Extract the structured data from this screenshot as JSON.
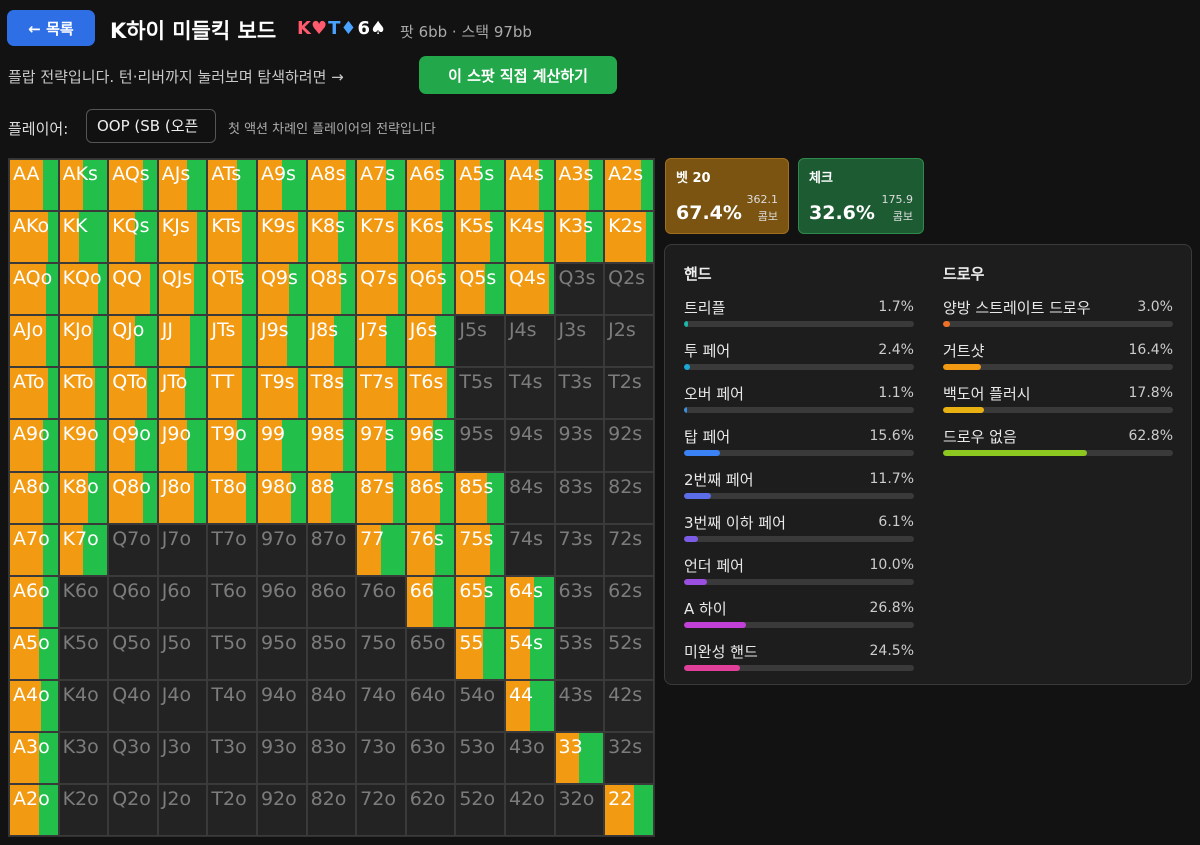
{
  "header": {
    "back_label": "← 목록",
    "title": "K하이 미들킥 보드",
    "board": [
      {
        "rank": "K",
        "suit": "♥",
        "color": "#ff5a6e"
      },
      {
        "rank": "T",
        "suit": "♦",
        "color": "#4aa3ff"
      },
      {
        "rank": "6",
        "suit": "♠",
        "color": "#ffffff"
      }
    ],
    "pot_stack": "팟 6bb · 스택 97bb"
  },
  "description": "플랍 전략입니다. 턴·리버까지 눌러보며 탐색하려면 →",
  "calc_button": "이 스팟 직접 계산하기",
  "player": {
    "label": "플레이어:",
    "selected": "OOP (SB (오픈",
    "note": "첫 액션 차례인 플레이어의 전략입니다"
  },
  "actions": [
    {
      "name": "벳 20",
      "pct": "67.4%",
      "combos": "362.1",
      "combo_label": "콤보"
    },
    {
      "name": "체크",
      "pct": "32.6%",
      "combos": "175.9",
      "combo_label": "콤보"
    }
  ],
  "colors": {
    "bet": "#f29a12",
    "check": "#22c04a",
    "inactive": "#232323"
  },
  "hands": {
    "title": "핸드",
    "items": [
      {
        "name": "트리플",
        "pct": "1.7%",
        "value": 1.7,
        "color": "#1fb5a8"
      },
      {
        "name": "투 페어",
        "pct": "2.4%",
        "value": 2.4,
        "color": "#1aa8d8"
      },
      {
        "name": "오버 페어",
        "pct": "1.1%",
        "value": 1.1,
        "color": "#3a90e0"
      },
      {
        "name": "탑 페어",
        "pct": "15.6%",
        "value": 15.6,
        "color": "#3b82f6"
      },
      {
        "name": "2번째 페어",
        "pct": "11.7%",
        "value": 11.7,
        "color": "#5b6ee8"
      },
      {
        "name": "3번째 이하 페어",
        "pct": "6.1%",
        "value": 6.1,
        "color": "#7c5ce6"
      },
      {
        "name": "언더 페어",
        "pct": "10.0%",
        "value": 10.0,
        "color": "#9b4fe0"
      },
      {
        "name": "A 하이",
        "pct": "26.8%",
        "value": 26.8,
        "color": "#c040d8"
      },
      {
        "name": "미완성 핸드",
        "pct": "24.5%",
        "value": 24.5,
        "color": "#e0409a"
      }
    ]
  },
  "draws": {
    "title": "드로우",
    "items": [
      {
        "name": "양방 스트레이트 드로우",
        "pct": "3.0%",
        "value": 3.0,
        "color": "#f07028"
      },
      {
        "name": "거트샷",
        "pct": "16.4%",
        "value": 16.4,
        "color": "#f29a12"
      },
      {
        "name": "백도어 플러시",
        "pct": "17.8%",
        "value": 17.8,
        "color": "#e8b010"
      },
      {
        "name": "드로우 없음",
        "pct": "62.8%",
        "value": 62.8,
        "color": "#8cc820"
      }
    ]
  },
  "grid": {
    "rows": [
      [
        "AA",
        "AKs",
        "AQs",
        "AJs",
        "ATs",
        "A9s",
        "A8s",
        "A7s",
        "A6s",
        "A5s",
        "A4s",
        "A3s",
        "A2s"
      ],
      [
        "AKo",
        "KK",
        "KQs",
        "KJs",
        "KTs",
        "K9s",
        "K8s",
        "K7s",
        "K6s",
        "K5s",
        "K4s",
        "K3s",
        "K2s"
      ],
      [
        "AQo",
        "KQo",
        "QQ",
        "QJs",
        "QTs",
        "Q9s",
        "Q8s",
        "Q7s",
        "Q6s",
        "Q5s",
        "Q4s",
        "Q3s",
        "Q2s"
      ],
      [
        "AJo",
        "KJo",
        "QJo",
        "JJ",
        "JTs",
        "J9s",
        "J8s",
        "J7s",
        "J6s",
        "J5s",
        "J4s",
        "J3s",
        "J2s"
      ],
      [
        "ATo",
        "KTo",
        "QTo",
        "JTo",
        "TT",
        "T9s",
        "T8s",
        "T7s",
        "T6s",
        "T5s",
        "T4s",
        "T3s",
        "T2s"
      ],
      [
        "A9o",
        "K9o",
        "Q9o",
        "J9o",
        "T9o",
        "99",
        "98s",
        "97s",
        "96s",
        "95s",
        "94s",
        "93s",
        "92s"
      ],
      [
        "A8o",
        "K8o",
        "Q8o",
        "J8o",
        "T8o",
        "98o",
        "88",
        "87s",
        "86s",
        "85s",
        "84s",
        "83s",
        "82s"
      ],
      [
        "A7o",
        "K7o",
        "Q7o",
        "J7o",
        "T7o",
        "97o",
        "87o",
        "77",
        "76s",
        "75s",
        "74s",
        "73s",
        "72s"
      ],
      [
        "A6o",
        "K6o",
        "Q6o",
        "J6o",
        "T6o",
        "96o",
        "86o",
        "76o",
        "66",
        "65s",
        "64s",
        "63s",
        "62s"
      ],
      [
        "A5o",
        "K5o",
        "Q5o",
        "J5o",
        "T5o",
        "95o",
        "85o",
        "75o",
        "65o",
        "55",
        "54s",
        "53s",
        "52s"
      ],
      [
        "A4o",
        "K4o",
        "Q4o",
        "J4o",
        "T4o",
        "94o",
        "84o",
        "74o",
        "64o",
        "54o",
        "44",
        "43s",
        "42s"
      ],
      [
        "A3o",
        "K3o",
        "Q3o",
        "J3o",
        "T3o",
        "93o",
        "83o",
        "73o",
        "63o",
        "53o",
        "43o",
        "33",
        "32s"
      ],
      [
        "A2o",
        "K2o",
        "Q2o",
        "J2o",
        "T2o",
        "92o",
        "82o",
        "72o",
        "62o",
        "52o",
        "42o",
        "32o",
        "22"
      ]
    ],
    "strategy": [
      [
        [
          0.7,
          1
        ],
        [
          0.5,
          1
        ],
        [
          0.7,
          1
        ],
        [
          0.6,
          1
        ],
        [
          0.6,
          1
        ],
        [
          0.5,
          1
        ],
        [
          0.8,
          1
        ],
        [
          0.6,
          1
        ],
        [
          0.7,
          1
        ],
        [
          0.5,
          1
        ],
        [
          0.7,
          1
        ],
        [
          0.7,
          1
        ],
        [
          0.75,
          1
        ]
      ],
      [
        [
          0.8,
          1
        ],
        [
          0.4,
          1
        ],
        [
          0.55,
          1
        ],
        [
          0.8,
          1
        ],
        [
          0.7,
          1
        ],
        [
          0.85,
          1
        ],
        [
          0.65,
          1
        ],
        [
          0.85,
          1
        ],
        [
          0.75,
          1
        ],
        [
          0.7,
          1
        ],
        [
          0.8,
          1
        ],
        [
          0.65,
          1
        ],
        [
          0.85,
          1
        ]
      ],
      [
        [
          0.75,
          1
        ],
        [
          0.8,
          1
        ],
        [
          0.85,
          1
        ],
        [
          0.75,
          1
        ],
        [
          0.7,
          1
        ],
        [
          0.65,
          1
        ],
        [
          0.7,
          1
        ],
        [
          0.85,
          1
        ],
        [
          0.75,
          1
        ],
        [
          0.6,
          1
        ],
        [
          0.9,
          1
        ],
        [
          0,
          0
        ],
        [
          0,
          0
        ]
      ],
      [
        [
          0.75,
          1
        ],
        [
          0.7,
          1
        ],
        [
          0.55,
          1
        ],
        [
          0.65,
          1
        ],
        [
          0.7,
          1
        ],
        [
          0.6,
          1
        ],
        [
          0.55,
          1
        ],
        [
          0.6,
          1
        ],
        [
          0.6,
          1
        ],
        [
          0,
          0
        ],
        [
          0,
          0
        ],
        [
          0,
          0
        ],
        [
          0,
          0
        ]
      ],
      [
        [
          0.8,
          1
        ],
        [
          0.75,
          1
        ],
        [
          0.8,
          1
        ],
        [
          0.55,
          1
        ],
        [
          0.7,
          1
        ],
        [
          0.85,
          1
        ],
        [
          0.75,
          1
        ],
        [
          0.85,
          1
        ],
        [
          0.85,
          1
        ],
        [
          0,
          0
        ],
        [
          0,
          0
        ],
        [
          0,
          0
        ],
        [
          0,
          0
        ]
      ],
      [
        [
          0.7,
          1
        ],
        [
          0.75,
          1
        ],
        [
          0.55,
          1
        ],
        [
          0.6,
          1
        ],
        [
          0.6,
          1
        ],
        [
          0.5,
          1
        ],
        [
          0.75,
          1
        ],
        [
          0.6,
          1
        ],
        [
          0.55,
          1
        ],
        [
          0,
          0
        ],
        [
          0,
          0
        ],
        [
          0,
          0
        ],
        [
          0,
          0
        ]
      ],
      [
        [
          0.7,
          1
        ],
        [
          0.6,
          1
        ],
        [
          0.7,
          1
        ],
        [
          0.75,
          1
        ],
        [
          0.8,
          1
        ],
        [
          0.7,
          1
        ],
        [
          0.5,
          1
        ],
        [
          0.75,
          1
        ],
        [
          0.7,
          1
        ],
        [
          0.65,
          1
        ],
        [
          0,
          0
        ],
        [
          0,
          0
        ],
        [
          0,
          0
        ]
      ],
      [
        [
          0.7,
          1
        ],
        [
          0.5,
          1
        ],
        [
          0,
          0
        ],
        [
          0,
          0
        ],
        [
          0,
          0
        ],
        [
          0,
          0
        ],
        [
          0,
          0
        ],
        [
          0.5,
          1
        ],
        [
          0.6,
          1
        ],
        [
          0.7,
          1
        ],
        [
          0,
          0
        ],
        [
          0,
          0
        ],
        [
          0,
          0
        ]
      ],
      [
        [
          0.7,
          1
        ],
        [
          0,
          0
        ],
        [
          0,
          0
        ],
        [
          0,
          0
        ],
        [
          0,
          0
        ],
        [
          0,
          0
        ],
        [
          0,
          0
        ],
        [
          0,
          0
        ],
        [
          0.55,
          1
        ],
        [
          0.6,
          1
        ],
        [
          0.6,
          1
        ],
        [
          0,
          0
        ],
        [
          0,
          0
        ]
      ],
      [
        [
          0.6,
          1
        ],
        [
          0,
          0
        ],
        [
          0,
          0
        ],
        [
          0,
          0
        ],
        [
          0,
          0
        ],
        [
          0,
          0
        ],
        [
          0,
          0
        ],
        [
          0,
          0
        ],
        [
          0,
          0
        ],
        [
          0.55,
          1
        ],
        [
          0.5,
          1
        ],
        [
          0,
          0
        ],
        [
          0,
          0
        ]
      ],
      [
        [
          0.65,
          1
        ],
        [
          0,
          0
        ],
        [
          0,
          0
        ],
        [
          0,
          0
        ],
        [
          0,
          0
        ],
        [
          0,
          0
        ],
        [
          0,
          0
        ],
        [
          0,
          0
        ],
        [
          0,
          0
        ],
        [
          0,
          0
        ],
        [
          0.5,
          1
        ],
        [
          0,
          0
        ],
        [
          0,
          0
        ]
      ],
      [
        [
          0.6,
          1
        ],
        [
          0,
          0
        ],
        [
          0,
          0
        ],
        [
          0,
          0
        ],
        [
          0,
          0
        ],
        [
          0,
          0
        ],
        [
          0,
          0
        ],
        [
          0,
          0
        ],
        [
          0,
          0
        ],
        [
          0,
          0
        ],
        [
          0,
          0
        ],
        [
          0.5,
          1
        ],
        [
          0,
          0
        ]
      ],
      [
        [
          0.6,
          1
        ],
        [
          0,
          0
        ],
        [
          0,
          0
        ],
        [
          0,
          0
        ],
        [
          0,
          0
        ],
        [
          0,
          0
        ],
        [
          0,
          0
        ],
        [
          0,
          0
        ],
        [
          0,
          0
        ],
        [
          0,
          0
        ],
        [
          0,
          0
        ],
        [
          0,
          0
        ],
        [
          0.6,
          1
        ]
      ]
    ]
  }
}
